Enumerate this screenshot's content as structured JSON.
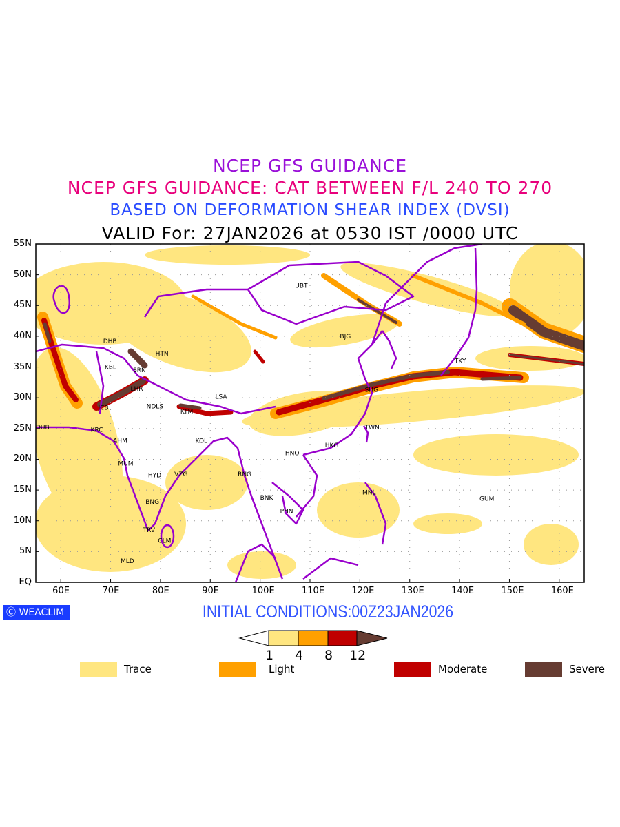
{
  "titles": {
    "line1": "NCEP GFS GUIDANCE",
    "line2": "NCEP GFS GUIDANCE: CAT BETWEEN F/L 240 TO 270",
    "line3": "BASED ON DEFORMATION SHEAR INDEX (DVSI)",
    "line4": "VALID For: 27JAN2026 at 0530 IST /0000 UTC"
  },
  "axes": {
    "lat_labels": [
      "55N",
      "50N",
      "45N",
      "40N",
      "35N",
      "30N",
      "25N",
      "20N",
      "15N",
      "10N",
      "5N",
      "EQ"
    ],
    "lon_labels": [
      "60E",
      "70E",
      "80E",
      "90E",
      "100E",
      "110E",
      "120E",
      "130E",
      "140E",
      "150E",
      "160E"
    ],
    "lon_range": [
      55,
      165
    ],
    "lat_range": [
      0,
      55
    ]
  },
  "cities": [
    {
      "code": "UBT",
      "lon": 107,
      "lat": 48.2
    },
    {
      "code": "BJG",
      "lon": 116,
      "lat": 40
    },
    {
      "code": "SHG",
      "lon": 121,
      "lat": 31.3
    },
    {
      "code": "TKY",
      "lon": 139,
      "lat": 36
    },
    {
      "code": "TWN",
      "lon": 121,
      "lat": 25.2
    },
    {
      "code": "HKG",
      "lon": 113,
      "lat": 22.3
    },
    {
      "code": "HNO",
      "lon": 105,
      "lat": 21
    },
    {
      "code": "MNL",
      "lon": 120.5,
      "lat": 14.6
    },
    {
      "code": "GUM",
      "lon": 144,
      "lat": 13.6
    },
    {
      "code": "BNK",
      "lon": 100,
      "lat": 13.8
    },
    {
      "code": "PHN",
      "lon": 104,
      "lat": 11.6
    },
    {
      "code": "RNG",
      "lon": 95.5,
      "lat": 17.6
    },
    {
      "code": "KOL",
      "lon": 87,
      "lat": 23
    },
    {
      "code": "KTM",
      "lon": 84,
      "lat": 27.8
    },
    {
      "code": "LSA",
      "lon": 91,
      "lat": 30.2
    },
    {
      "code": "NDLS",
      "lon": 77.2,
      "lat": 28.6
    },
    {
      "code": "LHR",
      "lon": 74,
      "lat": 31.5
    },
    {
      "code": "SRN",
      "lon": 74.5,
      "lat": 34.5
    },
    {
      "code": "HTN",
      "lon": 79,
      "lat": 37.2
    },
    {
      "code": "KBL",
      "lon": 68.8,
      "lat": 35
    },
    {
      "code": "DHB",
      "lon": 68.5,
      "lat": 39.2
    },
    {
      "code": "JCB",
      "lon": 67.5,
      "lat": 28.4
    },
    {
      "code": "KRC",
      "lon": 66,
      "lat": 24.8
    },
    {
      "code": "DUB",
      "lon": 55,
      "lat": 25.2
    },
    {
      "code": "AHM",
      "lon": 70.5,
      "lat": 23
    },
    {
      "code": "MUM",
      "lon": 71.5,
      "lat": 19.3
    },
    {
      "code": "HYD",
      "lon": 77.5,
      "lat": 17.4
    },
    {
      "code": "VZG",
      "lon": 82.8,
      "lat": 17.6
    },
    {
      "code": "BNG",
      "lon": 77,
      "lat": 13.1
    },
    {
      "code": "TRV",
      "lon": 76.5,
      "lat": 8.5
    },
    {
      "code": "CLM",
      "lon": 79.5,
      "lat": 6.8
    },
    {
      "code": "MLD",
      "lon": 72,
      "lat": 3.5
    }
  ],
  "footer": {
    "badge": "WEACLIM",
    "initial_conditions": "INITIAL CONDITIONS:00Z23JAN2026"
  },
  "colorbar": {
    "ticks": [
      "1",
      "4",
      "8",
      "12"
    ],
    "colors": [
      "#ffe680",
      "#ffa000",
      "#c00000",
      "#663c32"
    ]
  },
  "legend": [
    {
      "label": "Trace",
      "color": "#ffe680"
    },
    {
      "label": "Light",
      "color": "#ffa000"
    },
    {
      "label": "Moderate",
      "color": "#c00000"
    },
    {
      "label": "Severe",
      "color": "#663c32"
    }
  ],
  "colors": {
    "border": "#9900cc",
    "trace": "#ffe680",
    "light": "#ffa000",
    "moderate": "#c00000",
    "severe": "#663c32"
  }
}
